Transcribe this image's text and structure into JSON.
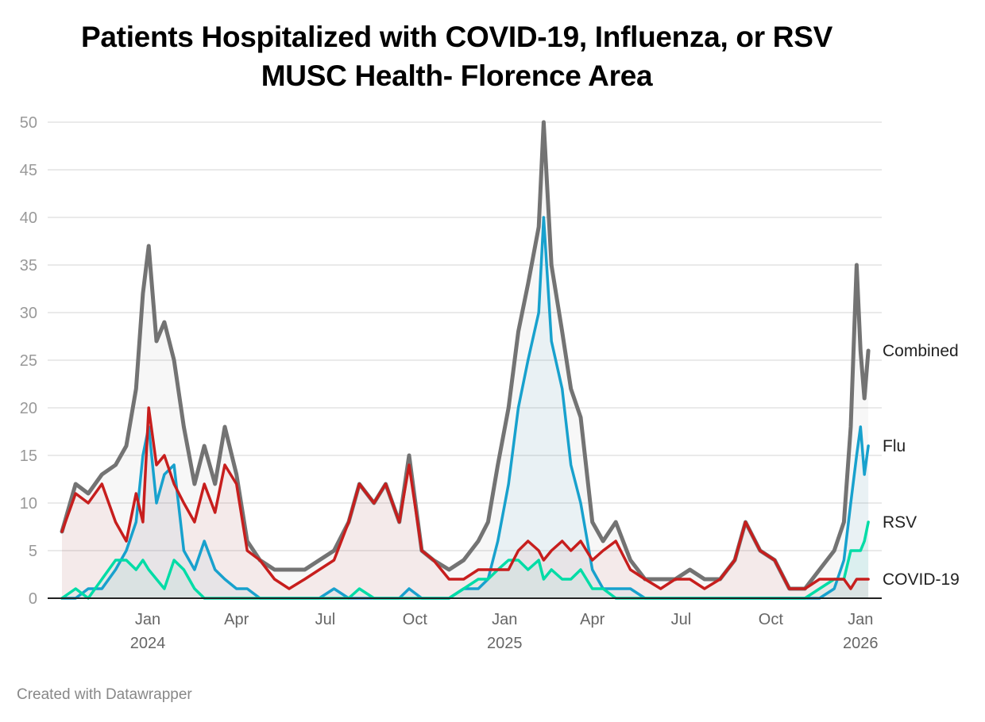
{
  "chart_data": {
    "type": "line",
    "title": "Patients Hospitalized with COVID-19, Influenza, or RSV",
    "subtitle": "MUSC Health- Florence Area",
    "xlabel": "",
    "ylabel": "",
    "ylim": [
      0,
      50
    ],
    "yticks": [
      0,
      5,
      10,
      15,
      20,
      25,
      30,
      35,
      40,
      45,
      50
    ],
    "xticks": [
      {
        "date": "2024-01-01",
        "label": "Jan",
        "year": "2024"
      },
      {
        "date": "2024-04-01",
        "label": "Apr",
        "year": ""
      },
      {
        "date": "2024-07-01",
        "label": "Jul",
        "year": ""
      },
      {
        "date": "2024-10-01",
        "label": "Oct",
        "year": ""
      },
      {
        "date": "2025-01-01",
        "label": "Jan",
        "year": "2025"
      },
      {
        "date": "2025-04-01",
        "label": "Apr",
        "year": ""
      },
      {
        "date": "2025-07-01",
        "label": "Jul",
        "year": ""
      },
      {
        "date": "2025-10-01",
        "label": "Oct",
        "year": ""
      },
      {
        "date": "2026-01-01",
        "label": "Jan",
        "year": "2026"
      }
    ],
    "grid": true,
    "legend": "direct labels at right end of lines",
    "x": [
      "2023-10-05",
      "2023-10-19",
      "2023-11-01",
      "2023-11-15",
      "2023-11-29",
      "2023-12-10",
      "2023-12-20",
      "2023-12-27",
      "2024-01-02",
      "2024-01-10",
      "2024-01-18",
      "2024-01-28",
      "2024-02-07",
      "2024-02-18",
      "2024-02-28",
      "2024-03-10",
      "2024-03-20",
      "2024-04-01",
      "2024-04-12",
      "2024-04-25",
      "2024-05-10",
      "2024-05-25",
      "2024-06-10",
      "2024-06-25",
      "2024-07-10",
      "2024-07-25",
      "2024-08-05",
      "2024-08-20",
      "2024-09-01",
      "2024-09-15",
      "2024-09-25",
      "2024-10-08",
      "2024-10-20",
      "2024-11-05",
      "2024-11-20",
      "2024-12-05",
      "2024-12-15",
      "2024-12-25",
      "2025-01-05",
      "2025-01-15",
      "2025-01-25",
      "2025-02-05",
      "2025-02-10",
      "2025-02-18",
      "2025-03-01",
      "2025-03-10",
      "2025-03-20",
      "2025-04-01",
      "2025-04-12",
      "2025-04-25",
      "2025-05-10",
      "2025-05-25",
      "2025-06-10",
      "2025-06-25",
      "2025-07-10",
      "2025-07-25",
      "2025-08-10",
      "2025-08-25",
      "2025-09-05",
      "2025-09-20",
      "2025-10-05",
      "2025-10-20",
      "2025-11-05",
      "2025-11-20",
      "2025-12-05",
      "2025-12-15",
      "2025-12-22",
      "2025-12-28",
      "2026-01-01",
      "2026-01-05",
      "2026-01-09"
    ],
    "series": [
      {
        "name": "Combined",
        "color": "#737373",
        "end_value": 26,
        "values": [
          7,
          12,
          11,
          13,
          14,
          16,
          22,
          32,
          37,
          27,
          29,
          25,
          18,
          12,
          16,
          12,
          18,
          13,
          6,
          4,
          3,
          3,
          3,
          4,
          5,
          8,
          12,
          10,
          12,
          8,
          15,
          5,
          4,
          3,
          4,
          6,
          8,
          14,
          20,
          28,
          33,
          39,
          50,
          35,
          28,
          22,
          19,
          8,
          6,
          8,
          4,
          2,
          2,
          2,
          3,
          2,
          2,
          4,
          8,
          5,
          4,
          1,
          1,
          3,
          5,
          8,
          18,
          35,
          26,
          21,
          26
        ]
      },
      {
        "name": "Flu",
        "color": "#18a1cd",
        "end_value": 16,
        "values": [
          0,
          0,
          1,
          1,
          3,
          5,
          8,
          15,
          18,
          10,
          13,
          14,
          5,
          3,
          6,
          3,
          2,
          1,
          1,
          0,
          0,
          0,
          0,
          0,
          1,
          0,
          0,
          0,
          0,
          0,
          1,
          0,
          0,
          0,
          1,
          1,
          2,
          6,
          12,
          20,
          25,
          30,
          40,
          27,
          22,
          14,
          10,
          3,
          1,
          1,
          1,
          0,
          0,
          0,
          0,
          0,
          0,
          0,
          0,
          0,
          0,
          0,
          0,
          0,
          1,
          4,
          10,
          15,
          18,
          13,
          16
        ]
      },
      {
        "name": "RSV",
        "color": "#00dca6",
        "end_value": 8,
        "values": [
          0,
          1,
          0,
          2,
          4,
          4,
          3,
          4,
          3,
          2,
          1,
          4,
          3,
          1,
          0,
          0,
          0,
          0,
          0,
          0,
          0,
          0,
          0,
          0,
          0,
          0,
          1,
          0,
          0,
          0,
          0,
          0,
          0,
          0,
          1,
          2,
          2,
          3,
          4,
          4,
          3,
          4,
          2,
          3,
          2,
          2,
          3,
          1,
          1,
          0,
          0,
          0,
          0,
          0,
          0,
          0,
          0,
          0,
          0,
          0,
          0,
          0,
          0,
          1,
          2,
          2,
          5,
          5,
          5,
          6,
          8
        ]
      },
      {
        "name": "COVID-19",
        "color": "#c71e1d",
        "end_value": 2,
        "values": [
          7,
          11,
          10,
          12,
          8,
          6,
          11,
          8,
          20,
          14,
          15,
          12,
          10,
          8,
          12,
          9,
          14,
          12,
          5,
          4,
          2,
          1,
          2,
          3,
          4,
          8,
          12,
          10,
          12,
          8,
          14,
          5,
          4,
          2,
          2,
          3,
          3,
          3,
          3,
          5,
          6,
          5,
          4,
          5,
          6,
          5,
          6,
          4,
          5,
          6,
          3,
          2,
          1,
          2,
          2,
          1,
          2,
          4,
          8,
          5,
          4,
          1,
          1,
          2,
          2,
          2,
          1,
          2,
          2,
          2,
          2
        ]
      }
    ]
  },
  "footer": "Created with Datawrapper"
}
